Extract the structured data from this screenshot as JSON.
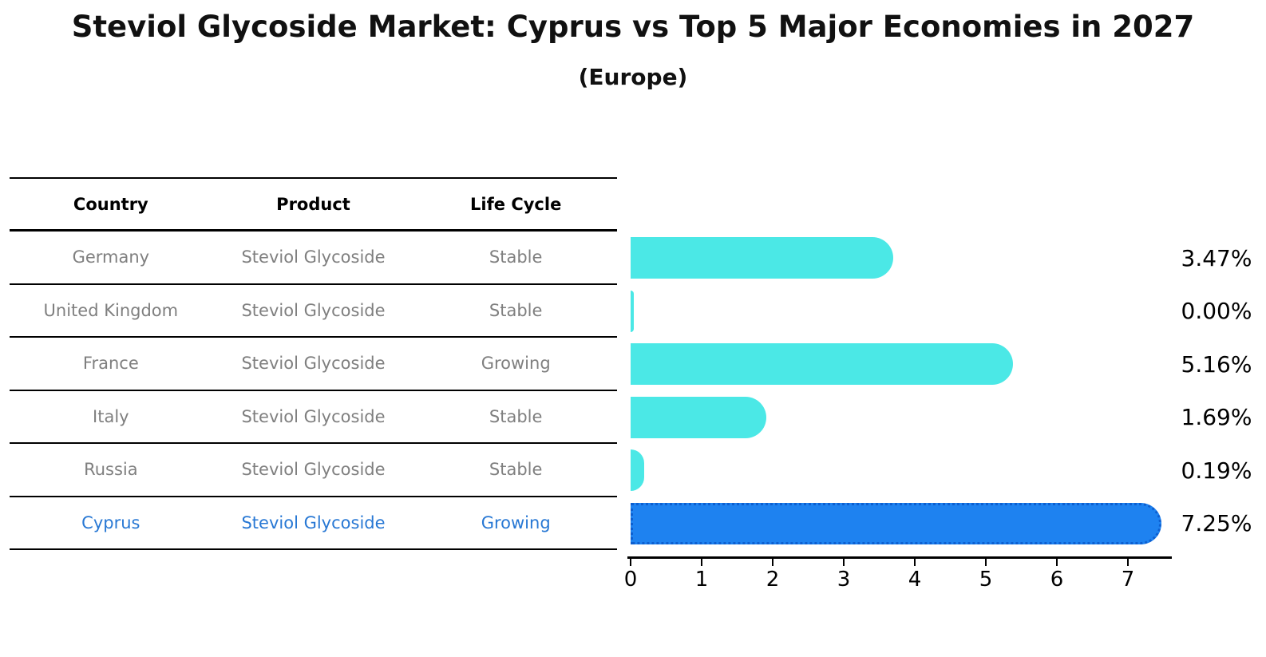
{
  "title": "Steviol Glycoside Market: Cyprus vs Top 5 Major Economies in 2027",
  "subtitle": "(Europe)",
  "table": {
    "headers": [
      "Country",
      "Product",
      "Life Cycle"
    ],
    "rows": [
      {
        "country": "Germany",
        "product": "Steviol Glycoside",
        "life_cycle": "Stable",
        "highlight": false
      },
      {
        "country": "United Kingdom",
        "product": "Steviol Glycoside",
        "life_cycle": "Stable",
        "highlight": false
      },
      {
        "country": "France",
        "product": "Steviol Glycoside",
        "life_cycle": "Growing",
        "highlight": false
      },
      {
        "country": "Italy",
        "product": "Steviol Glycoside",
        "life_cycle": "Stable",
        "highlight": false
      },
      {
        "country": "Russia",
        "product": "Steviol Glycoside",
        "life_cycle": "Stable",
        "highlight": false
      },
      {
        "country": "Cyprus",
        "product": "Steviol Glycoside",
        "life_cycle": "Growing",
        "highlight": true
      }
    ]
  },
  "chart_data": {
    "type": "bar",
    "orientation": "horizontal",
    "title": "Steviol Glycoside Market: Cyprus vs Top 5 Major Economies in 2027",
    "subtitle": "(Europe)",
    "categories": [
      "Germany",
      "United Kingdom",
      "France",
      "Italy",
      "Russia",
      "Cyprus"
    ],
    "values": [
      3.47,
      0.0,
      5.16,
      1.69,
      0.19,
      7.25
    ],
    "value_labels": [
      "3.47%",
      "0.00%",
      "5.16%",
      "1.69%",
      "0.19%",
      "7.25%"
    ],
    "xlabel": "",
    "ylabel": "",
    "xlim": [
      0,
      7.7
    ],
    "x_ticks": [
      0,
      1,
      2,
      3,
      4,
      5,
      6,
      7
    ],
    "grid": false,
    "legend": "none",
    "highlight_index": 5,
    "bar_color": "#4be8e6",
    "highlight_bar_color": "#1e82f0",
    "highlight_border_color": "#0d5fd0",
    "highlight_text_color": "#2878d4",
    "text_color": "#7f7f7f"
  }
}
